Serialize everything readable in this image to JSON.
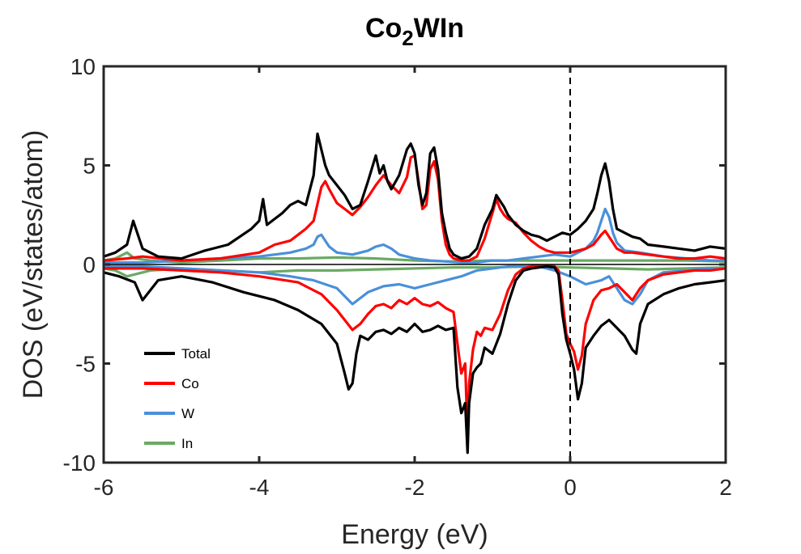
{
  "chart_data": {
    "type": "line",
    "title": {
      "main": "Co",
      "sub": "2",
      "rest": "WIn"
    },
    "xlabel": "Energy (eV)",
    "ylabel": "DOS (eV/states/atom)",
    "xlim": [
      -6,
      2
    ],
    "ylim": [
      -10,
      10
    ],
    "xticks": [
      -6,
      -4,
      -2,
      0,
      2
    ],
    "yticks": [
      -10,
      -5,
      0,
      5,
      10
    ],
    "xtick_labels": [
      "-6",
      "-4",
      "-2",
      "0",
      "2"
    ],
    "ytick_labels": [
      "-10",
      "-5",
      "0",
      "5",
      "10"
    ],
    "grid": false,
    "fermi_level_line": {
      "x": 0,
      "style": "dashed"
    },
    "zero_line": {
      "y": 0
    },
    "legend_position": "lower-left",
    "colors": {
      "Total": "#000000",
      "Co": "#ff0000",
      "W": "#4a90d9",
      "In": "#6aaa64"
    },
    "series": [
      {
        "name": "Total",
        "spin": "up",
        "x": [
          -6.0,
          -5.85,
          -5.7,
          -5.62,
          -5.5,
          -5.3,
          -5.0,
          -4.7,
          -4.4,
          -4.1,
          -4.0,
          -3.95,
          -3.9,
          -3.8,
          -3.7,
          -3.6,
          -3.5,
          -3.4,
          -3.3,
          -3.25,
          -3.2,
          -3.15,
          -3.1,
          -3.0,
          -2.9,
          -2.8,
          -2.7,
          -2.6,
          -2.5,
          -2.45,
          -2.4,
          -2.35,
          -2.3,
          -2.2,
          -2.1,
          -2.05,
          -2.0,
          -1.95,
          -1.9,
          -1.85,
          -1.8,
          -1.75,
          -1.7,
          -1.65,
          -1.6,
          -1.55,
          -1.5,
          -1.4,
          -1.3,
          -1.2,
          -1.1,
          -1.0,
          -0.95,
          -0.9,
          -0.85,
          -0.8,
          -0.7,
          -0.6,
          -0.5,
          -0.4,
          -0.3,
          -0.2,
          -0.1,
          0.0,
          0.1,
          0.2,
          0.3,
          0.35,
          0.4,
          0.45,
          0.5,
          0.55,
          0.6,
          0.7,
          0.8,
          0.9,
          1.0,
          1.2,
          1.4,
          1.6,
          1.8,
          2.0
        ],
        "y": [
          0.4,
          0.6,
          1.0,
          2.2,
          0.8,
          0.4,
          0.3,
          0.7,
          1.0,
          1.8,
          2.2,
          3.3,
          2.0,
          2.3,
          2.6,
          3.0,
          3.2,
          3.0,
          4.5,
          6.6,
          5.8,
          5.0,
          4.5,
          4.0,
          3.5,
          2.8,
          3.0,
          4.2,
          5.5,
          4.6,
          5.0,
          4.2,
          3.8,
          4.5,
          5.8,
          6.1,
          5.6,
          4.0,
          3.0,
          3.6,
          5.6,
          5.9,
          4.8,
          2.6,
          1.6,
          0.8,
          0.5,
          0.3,
          0.4,
          0.8,
          2.0,
          2.8,
          3.5,
          3.2,
          2.9,
          2.5,
          2.0,
          1.7,
          1.5,
          1.4,
          1.2,
          1.4,
          1.6,
          1.5,
          1.8,
          2.2,
          2.8,
          3.6,
          4.5,
          5.1,
          4.2,
          2.8,
          1.8,
          1.6,
          1.4,
          1.3,
          1.0,
          0.9,
          0.8,
          0.7,
          0.9,
          0.8
        ]
      },
      {
        "name": "Total",
        "spin": "down",
        "x": [
          -6.0,
          -5.8,
          -5.6,
          -5.5,
          -5.3,
          -5.0,
          -4.6,
          -4.2,
          -3.8,
          -3.5,
          -3.2,
          -3.0,
          -2.9,
          -2.85,
          -2.8,
          -2.75,
          -2.7,
          -2.6,
          -2.5,
          -2.4,
          -2.3,
          -2.2,
          -2.1,
          -2.0,
          -1.9,
          -1.8,
          -1.7,
          -1.6,
          -1.5,
          -1.45,
          -1.4,
          -1.35,
          -1.32,
          -1.3,
          -1.25,
          -1.2,
          -1.15,
          -1.1,
          -1.0,
          -0.9,
          -0.8,
          -0.7,
          -0.6,
          -0.5,
          -0.4,
          -0.3,
          -0.2,
          -0.15,
          -0.1,
          -0.05,
          0.0,
          0.05,
          0.1,
          0.15,
          0.2,
          0.3,
          0.4,
          0.5,
          0.6,
          0.7,
          0.8,
          0.85,
          0.9,
          1.0,
          1.2,
          1.4,
          1.6,
          1.8,
          2.0
        ],
        "y": [
          -0.4,
          -0.6,
          -0.9,
          -1.8,
          -0.8,
          -0.6,
          -0.9,
          -1.4,
          -1.8,
          -2.3,
          -3.0,
          -4.0,
          -5.5,
          -6.3,
          -6.0,
          -4.5,
          -3.6,
          -3.8,
          -3.4,
          -3.3,
          -3.5,
          -3.2,
          -3.4,
          -3.0,
          -3.4,
          -3.3,
          -3.1,
          -3.3,
          -3.2,
          -6.2,
          -7.5,
          -7.0,
          -9.5,
          -7.0,
          -5.5,
          -5.2,
          -5.0,
          -4.2,
          -4.5,
          -3.5,
          -2.0,
          -0.8,
          -0.3,
          -0.2,
          -0.15,
          -0.1,
          -0.15,
          -0.5,
          -2.5,
          -3.8,
          -4.5,
          -5.3,
          -6.8,
          -6.0,
          -4.2,
          -3.6,
          -3.1,
          -2.8,
          -3.2,
          -3.6,
          -4.3,
          -4.5,
          -3.0,
          -2.0,
          -1.5,
          -1.2,
          -1.0,
          -0.9,
          -0.8
        ]
      },
      {
        "name": "Co",
        "spin": "up",
        "x": [
          -6.0,
          -5.7,
          -5.5,
          -5.0,
          -4.5,
          -4.0,
          -3.8,
          -3.6,
          -3.5,
          -3.4,
          -3.3,
          -3.2,
          -3.15,
          -3.1,
          -3.0,
          -2.9,
          -2.8,
          -2.7,
          -2.6,
          -2.5,
          -2.4,
          -2.3,
          -2.2,
          -2.1,
          -2.05,
          -2.0,
          -1.95,
          -1.9,
          -1.85,
          -1.8,
          -1.75,
          -1.7,
          -1.65,
          -1.6,
          -1.55,
          -1.5,
          -1.4,
          -1.3,
          -1.2,
          -1.1,
          -1.0,
          -0.95,
          -0.9,
          -0.85,
          -0.8,
          -0.7,
          -0.6,
          -0.5,
          -0.4,
          -0.3,
          -0.2,
          -0.1,
          0.0,
          0.1,
          0.2,
          0.3,
          0.4,
          0.45,
          0.5,
          0.6,
          0.7,
          0.8,
          1.0,
          1.2,
          1.4,
          1.6,
          1.8,
          2.0
        ],
        "y": [
          0.2,
          0.3,
          0.4,
          0.2,
          0.3,
          0.6,
          1.0,
          1.2,
          1.5,
          1.8,
          2.2,
          3.9,
          4.2,
          3.8,
          3.1,
          2.8,
          2.5,
          2.9,
          3.4,
          4.0,
          4.5,
          4.0,
          3.6,
          4.4,
          5.4,
          5.5,
          4.2,
          2.8,
          3.0,
          4.8,
          5.2,
          4.3,
          2.2,
          1.0,
          0.5,
          0.3,
          0.2,
          0.2,
          0.4,
          1.3,
          2.6,
          3.3,
          2.8,
          2.5,
          2.3,
          2.1,
          1.6,
          1.2,
          0.9,
          0.7,
          0.6,
          0.6,
          0.6,
          0.7,
          0.8,
          1.0,
          1.5,
          1.7,
          1.4,
          0.8,
          0.6,
          0.6,
          0.5,
          0.4,
          0.3,
          0.3,
          0.4,
          0.3
        ]
      },
      {
        "name": "Co",
        "spin": "down",
        "x": [
          -6.0,
          -5.5,
          -5.0,
          -4.5,
          -4.0,
          -3.5,
          -3.2,
          -3.0,
          -2.9,
          -2.8,
          -2.7,
          -2.6,
          -2.5,
          -2.4,
          -2.3,
          -2.2,
          -2.1,
          -2.0,
          -1.9,
          -1.8,
          -1.7,
          -1.6,
          -1.5,
          -1.45,
          -1.4,
          -1.35,
          -1.32,
          -1.3,
          -1.25,
          -1.2,
          -1.15,
          -1.1,
          -1.0,
          -0.9,
          -0.8,
          -0.7,
          -0.6,
          -0.5,
          -0.4,
          -0.3,
          -0.2,
          -0.15,
          -0.1,
          -0.05,
          0.0,
          0.05,
          0.1,
          0.15,
          0.2,
          0.3,
          0.4,
          0.5,
          0.6,
          0.7,
          0.8,
          0.9,
          1.0,
          1.2,
          1.4,
          1.6,
          1.8,
          2.0
        ],
        "y": [
          -0.2,
          -0.2,
          -0.3,
          -0.4,
          -0.6,
          -0.9,
          -1.5,
          -2.3,
          -2.8,
          -3.3,
          -3.0,
          -2.5,
          -2.1,
          -2.0,
          -2.2,
          -1.8,
          -2.0,
          -1.7,
          -2.0,
          -2.1,
          -1.9,
          -2.2,
          -2.4,
          -4.0,
          -5.5,
          -5.0,
          -8.7,
          -6.0,
          -4.3,
          -3.4,
          -3.6,
          -3.2,
          -3.3,
          -2.5,
          -1.3,
          -0.5,
          -0.2,
          -0.1,
          -0.05,
          -0.05,
          -0.1,
          -0.3,
          -1.8,
          -3.5,
          -4.0,
          -4.4,
          -5.3,
          -4.6,
          -3.0,
          -1.8,
          -1.3,
          -1.2,
          -1.0,
          -1.4,
          -1.8,
          -1.2,
          -0.8,
          -0.5,
          -0.4,
          -0.3,
          -0.3,
          -0.2
        ]
      },
      {
        "name": "W",
        "spin": "up",
        "x": [
          -6.0,
          -5.5,
          -5.0,
          -4.5,
          -4.0,
          -3.6,
          -3.4,
          -3.3,
          -3.25,
          -3.2,
          -3.15,
          -3.1,
          -3.0,
          -2.8,
          -2.6,
          -2.5,
          -2.4,
          -2.3,
          -2.2,
          -2.0,
          -1.8,
          -1.6,
          -1.4,
          -1.2,
          -1.0,
          -0.8,
          -0.6,
          -0.4,
          -0.2,
          0.0,
          0.1,
          0.2,
          0.3,
          0.35,
          0.4,
          0.45,
          0.5,
          0.55,
          0.6,
          0.7,
          0.9,
          1.2,
          1.5,
          1.8,
          2.0
        ],
        "y": [
          0.1,
          0.1,
          0.2,
          0.3,
          0.4,
          0.6,
          0.8,
          1.0,
          1.4,
          1.5,
          1.2,
          0.9,
          0.6,
          0.5,
          0.7,
          0.9,
          1.0,
          0.8,
          0.5,
          0.3,
          0.2,
          0.15,
          0.1,
          0.1,
          0.2,
          0.2,
          0.3,
          0.4,
          0.5,
          0.4,
          0.6,
          0.8,
          1.2,
          1.6,
          2.2,
          2.8,
          2.4,
          1.6,
          1.1,
          0.7,
          0.6,
          0.4,
          0.3,
          0.2,
          0.2
        ]
      },
      {
        "name": "W",
        "spin": "down",
        "x": [
          -6.0,
          -5.5,
          -5.0,
          -4.5,
          -4.0,
          -3.6,
          -3.3,
          -3.0,
          -2.9,
          -2.8,
          -2.7,
          -2.6,
          -2.4,
          -2.2,
          -2.0,
          -1.8,
          -1.6,
          -1.4,
          -1.2,
          -1.0,
          -0.8,
          -0.6,
          -0.4,
          -0.2,
          0.0,
          0.2,
          0.4,
          0.5,
          0.6,
          0.7,
          0.8,
          0.9,
          1.0,
          1.2,
          1.5,
          1.8,
          2.0
        ],
        "y": [
          -0.1,
          -0.1,
          -0.2,
          -0.3,
          -0.4,
          -0.6,
          -0.8,
          -1.2,
          -1.6,
          -2.0,
          -1.7,
          -1.4,
          -1.1,
          -1.0,
          -1.2,
          -1.0,
          -0.8,
          -0.6,
          -0.3,
          -0.2,
          -0.1,
          -0.1,
          -0.1,
          -0.3,
          -0.6,
          -1.0,
          -0.8,
          -0.6,
          -1.2,
          -1.8,
          -2.0,
          -1.5,
          -0.8,
          -0.4,
          -0.3,
          -0.2,
          -0.2
        ]
      },
      {
        "name": "In",
        "spin": "up",
        "x": [
          -6.0,
          -5.85,
          -5.7,
          -5.6,
          -5.4,
          -5.0,
          -4.5,
          -4.0,
          -3.5,
          -3.0,
          -2.5,
          -2.0,
          -1.5,
          -1.0,
          -0.5,
          0.0,
          0.5,
          1.0,
          1.5,
          2.0
        ],
        "y": [
          0.2,
          0.3,
          0.6,
          0.3,
          0.2,
          0.1,
          0.2,
          0.3,
          0.3,
          0.35,
          0.3,
          0.2,
          0.15,
          0.2,
          0.2,
          0.2,
          0.2,
          0.2,
          0.2,
          0.15
        ]
      },
      {
        "name": "In",
        "spin": "down",
        "x": [
          -6.0,
          -5.85,
          -5.7,
          -5.6,
          -5.4,
          -5.0,
          -4.5,
          -4.0,
          -3.5,
          -3.0,
          -2.5,
          -2.0,
          -1.5,
          -1.0,
          -0.5,
          0.0,
          0.5,
          1.0,
          1.5,
          2.0
        ],
        "y": [
          -0.2,
          -0.3,
          -0.6,
          -0.5,
          -0.3,
          -0.2,
          -0.3,
          -0.4,
          -0.3,
          -0.3,
          -0.25,
          -0.2,
          -0.15,
          -0.15,
          -0.1,
          -0.15,
          -0.2,
          -0.25,
          -0.2,
          -0.15
        ]
      }
    ],
    "legend": [
      {
        "label": "Total",
        "color": "#000000"
      },
      {
        "label": "Co",
        "color": "#ff0000"
      },
      {
        "label": "W",
        "color": "#4a90d9"
      },
      {
        "label": "In",
        "color": "#6aaa64"
      }
    ]
  }
}
